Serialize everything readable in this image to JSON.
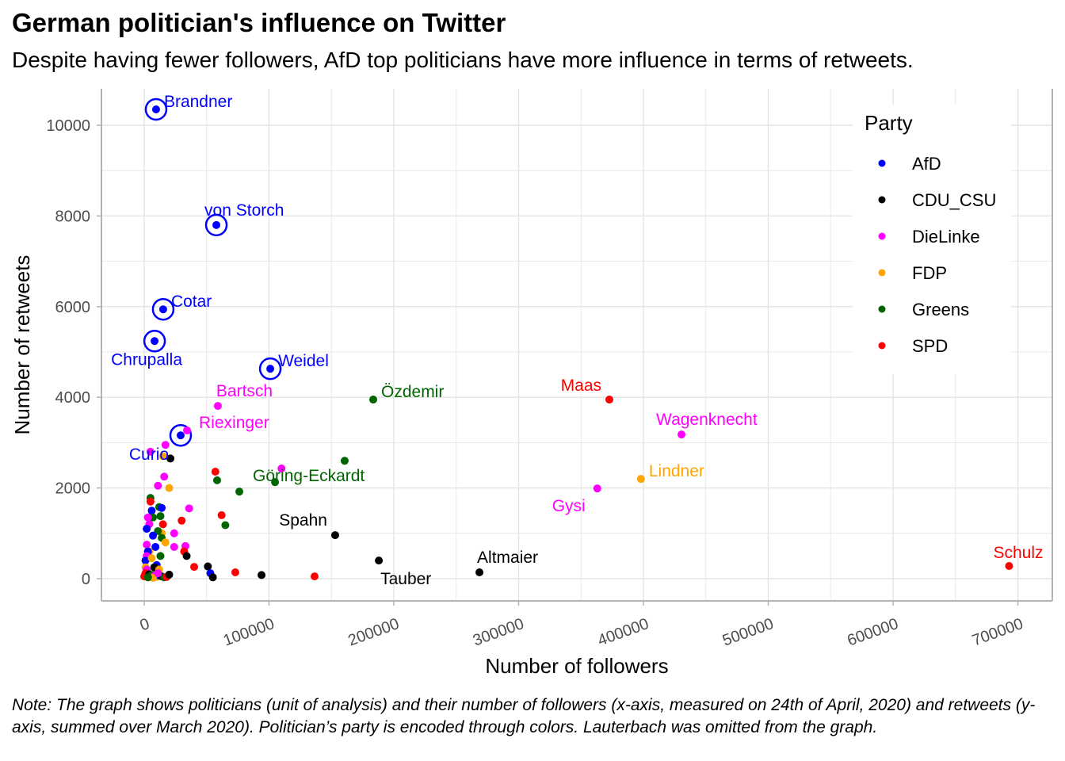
{
  "title": "German politician's influence on Twitter",
  "subtitle": "Despite having fewer followers, AfD top politicians have more influence in terms of retweets.",
  "note": "Note: The graph shows politicians (unit of analysis) and their number of followers (x-axis, measured on 24th of April, 2020) and retweets (y-axis, summed over March 2020). Politician’s party is encoded through colors. Lauterbach was omitted from the graph.",
  "chart_data": {
    "type": "scatter",
    "title": "German politician's influence on Twitter",
    "subtitle": "Despite having fewer followers, AfD top politicians have more influence in terms of retweets.",
    "xlabel": "Number of followers",
    "ylabel": "Number of retweets",
    "xlim": [
      -34000,
      728000
    ],
    "ylim": [
      -500,
      10800
    ],
    "xticks": [
      0,
      100000,
      200000,
      300000,
      400000,
      500000,
      600000,
      700000
    ],
    "xtick_labels": [
      "0",
      "100000",
      "200000",
      "300000",
      "400000",
      "500000",
      "600000",
      "700000"
    ],
    "yticks": [
      0,
      2000,
      4000,
      6000,
      8000,
      10000
    ],
    "ytick_labels": [
      "0",
      "2000",
      "4000",
      "6000",
      "8000",
      "10000"
    ],
    "grid": true,
    "legend": {
      "title": "Party",
      "placement": "top-right",
      "entries": [
        {
          "name": "AfD",
          "color": "#0000ff"
        },
        {
          "name": "CDU_CSU",
          "color": "#000000"
        },
        {
          "name": "DieLinke",
          "color": "#ff00ff"
        },
        {
          "name": "FDP",
          "color": "#ffa500"
        },
        {
          "name": "Greens",
          "color": "#006400"
        },
        {
          "name": "SPD",
          "color": "#ff0000"
        }
      ]
    },
    "highlighted_party": "AfD",
    "labeled_points": [
      {
        "name": "Brandner",
        "party": "AfD",
        "x": 9500,
        "y": 10350,
        "circled": true,
        "label_pos": "upper-right"
      },
      {
        "name": "von Storch",
        "party": "AfD",
        "x": 57800,
        "y": 7800,
        "circled": true,
        "label_pos": "above"
      },
      {
        "name": "Cotar",
        "party": "AfD",
        "x": 15200,
        "y": 5940,
        "circled": true,
        "label_pos": "upper-right"
      },
      {
        "name": "Chrupalla",
        "party": "AfD",
        "x": 8300,
        "y": 5240,
        "circled": true,
        "label_pos": "below"
      },
      {
        "name": "Weidel",
        "party": "AfD",
        "x": 101000,
        "y": 4630,
        "circled": true,
        "label_pos": "upper-right"
      },
      {
        "name": "Curio",
        "party": "AfD",
        "x": 29200,
        "y": 3160,
        "circled": true,
        "label_pos": "lower-left"
      },
      {
        "name": "Bartsch",
        "party": "DieLinke",
        "x": 59000,
        "y": 3810,
        "circled": false,
        "label_pos": "upper-right"
      },
      {
        "name": "Riexinger",
        "party": "DieLinke",
        "x": 34300,
        "y": 3270,
        "circled": false,
        "label_pos": "right"
      },
      {
        "name": "Özdemir",
        "party": "Greens",
        "x": 183500,
        "y": 3950,
        "circled": false,
        "label_pos": "upper-right"
      },
      {
        "name": "Göring-Eckardt",
        "party": "Greens",
        "x": 104800,
        "y": 2130,
        "circled": false,
        "label_pos": "center"
      },
      {
        "name": "Maas",
        "party": "SPD",
        "x": 372700,
        "y": 3950,
        "circled": false,
        "label_pos": "upper-left"
      },
      {
        "name": "Wagenknecht",
        "party": "DieLinke",
        "x": 430500,
        "y": 3180,
        "circled": false,
        "label_pos": "above"
      },
      {
        "name": "Lindner",
        "party": "FDP",
        "x": 398000,
        "y": 2200,
        "circled": false,
        "label_pos": "upper-right"
      },
      {
        "name": "Gysi",
        "party": "DieLinke",
        "x": 363000,
        "y": 1990,
        "circled": false,
        "label_pos": "lower-left"
      },
      {
        "name": "Spahn",
        "party": "CDU_CSU",
        "x": 153000,
        "y": 960,
        "circled": false,
        "label_pos": "upper-left"
      },
      {
        "name": "Tauber",
        "party": "CDU_CSU",
        "x": 188000,
        "y": 400,
        "circled": false,
        "label_pos": "below-right"
      },
      {
        "name": "Altmaier",
        "party": "CDU_CSU",
        "x": 268600,
        "y": 140,
        "circled": false,
        "label_pos": "above-right"
      },
      {
        "name": "Schulz",
        "party": "SPD",
        "x": 693000,
        "y": 280,
        "circled": false,
        "label_pos": "above"
      }
    ],
    "points": [
      {
        "party": "SPD",
        "x": 57000,
        "y": 2360
      },
      {
        "party": "Greens",
        "x": 58400,
        "y": 2170
      },
      {
        "party": "Greens",
        "x": 76200,
        "y": 1920
      },
      {
        "party": "Greens",
        "x": 160600,
        "y": 2600
      },
      {
        "party": "DieLinke",
        "x": 110000,
        "y": 2430
      },
      {
        "party": "CDU_CSU",
        "x": 21000,
        "y": 2650
      },
      {
        "party": "FDP",
        "x": 15000,
        "y": 2700
      },
      {
        "party": "DieLinke",
        "x": 5000,
        "y": 2800
      },
      {
        "party": "DieLinke",
        "x": 17000,
        "y": 2950
      },
      {
        "party": "DieLinke",
        "x": 16000,
        "y": 2250
      },
      {
        "party": "DieLinke",
        "x": 11000,
        "y": 2050
      },
      {
        "party": "FDP",
        "x": 20000,
        "y": 2000
      },
      {
        "party": "DieLinke",
        "x": 36000,
        "y": 1550
      },
      {
        "party": "SPD",
        "x": 62000,
        "y": 1400
      },
      {
        "party": "Greens",
        "x": 65000,
        "y": 1180
      },
      {
        "party": "SPD",
        "x": 30000,
        "y": 1280
      },
      {
        "party": "DieLinke",
        "x": 24000,
        "y": 1000
      },
      {
        "party": "DieLinke",
        "x": 24000,
        "y": 700
      },
      {
        "party": "DieLinke",
        "x": 33000,
        "y": 720
      },
      {
        "party": "SPD",
        "x": 32000,
        "y": 600
      },
      {
        "party": "CDU_CSU",
        "x": 34000,
        "y": 500
      },
      {
        "party": "SPD",
        "x": 40000,
        "y": 260
      },
      {
        "party": "CDU_CSU",
        "x": 51000,
        "y": 270
      },
      {
        "party": "AfD",
        "x": 53000,
        "y": 120
      },
      {
        "party": "CDU_CSU",
        "x": 55000,
        "y": 30
      },
      {
        "party": "SPD",
        "x": 73000,
        "y": 140
      },
      {
        "party": "CDU_CSU",
        "x": 94000,
        "y": 80
      },
      {
        "party": "SPD",
        "x": 136500,
        "y": 50
      },
      {
        "party": "Greens",
        "x": 5000,
        "y": 1780
      },
      {
        "party": "SPD",
        "x": 5000,
        "y": 1700
      },
      {
        "party": "AfD",
        "x": 6000,
        "y": 1500
      },
      {
        "party": "Greens",
        "x": 12000,
        "y": 1580
      },
      {
        "party": "AfD",
        "x": 14000,
        "y": 1560
      },
      {
        "party": "Greens",
        "x": 7000,
        "y": 1350
      },
      {
        "party": "Greens",
        "x": 13000,
        "y": 1380
      },
      {
        "party": "DieLinke",
        "x": 3000,
        "y": 1350
      },
      {
        "party": "DieLinke",
        "x": 4000,
        "y": 1200
      },
      {
        "party": "AfD",
        "x": 2000,
        "y": 1100
      },
      {
        "party": "SPD",
        "x": 15000,
        "y": 1200
      },
      {
        "party": "FDP",
        "x": 14000,
        "y": 1000
      },
      {
        "party": "Greens",
        "x": 11000,
        "y": 1050
      },
      {
        "party": "Greens",
        "x": 14000,
        "y": 900
      },
      {
        "party": "AfD",
        "x": 7000,
        "y": 950
      },
      {
        "party": "FDP",
        "x": 17000,
        "y": 800
      },
      {
        "party": "DieLinke",
        "x": 2000,
        "y": 750
      },
      {
        "party": "AfD",
        "x": 9000,
        "y": 700
      },
      {
        "party": "FDP",
        "x": 4000,
        "y": 600
      },
      {
        "party": "AfD",
        "x": 3000,
        "y": 600
      },
      {
        "party": "DieLinke",
        "x": 2000,
        "y": 500
      },
      {
        "party": "AfD",
        "x": 1000,
        "y": 400
      },
      {
        "party": "FDP",
        "x": 6000,
        "y": 450
      },
      {
        "party": "Greens",
        "x": 13000,
        "y": 500
      },
      {
        "party": "AfD",
        "x": 10000,
        "y": 300
      },
      {
        "party": "FDP",
        "x": 1000,
        "y": 250
      },
      {
        "party": "DieLinke",
        "x": 2000,
        "y": 200
      },
      {
        "party": "CDU_CSU",
        "x": 8000,
        "y": 250
      },
      {
        "party": "FDP",
        "x": 12000,
        "y": 200
      },
      {
        "party": "SPD",
        "x": 0,
        "y": 50
      },
      {
        "party": "SPD",
        "x": 1000,
        "y": 120
      },
      {
        "party": "CDU_CSU",
        "x": 4000,
        "y": 100
      },
      {
        "party": "Greens",
        "x": 6000,
        "y": 80
      },
      {
        "party": "DieLinke",
        "x": 8000,
        "y": 60
      },
      {
        "party": "FDP",
        "x": 10000,
        "y": 40
      },
      {
        "party": "AfD",
        "x": 12000,
        "y": 70
      },
      {
        "party": "CDU_CSU",
        "x": 14000,
        "y": 50
      },
      {
        "party": "Greens",
        "x": 16000,
        "y": 30
      },
      {
        "party": "SPD",
        "x": 18000,
        "y": 40
      },
      {
        "party": "CDU_CSU",
        "x": 20000,
        "y": 90
      },
      {
        "party": "FDP",
        "x": 7000,
        "y": 20
      },
      {
        "party": "DieLinke",
        "x": 11000,
        "y": 120
      },
      {
        "party": "Greens",
        "x": 3000,
        "y": 30
      }
    ]
  }
}
